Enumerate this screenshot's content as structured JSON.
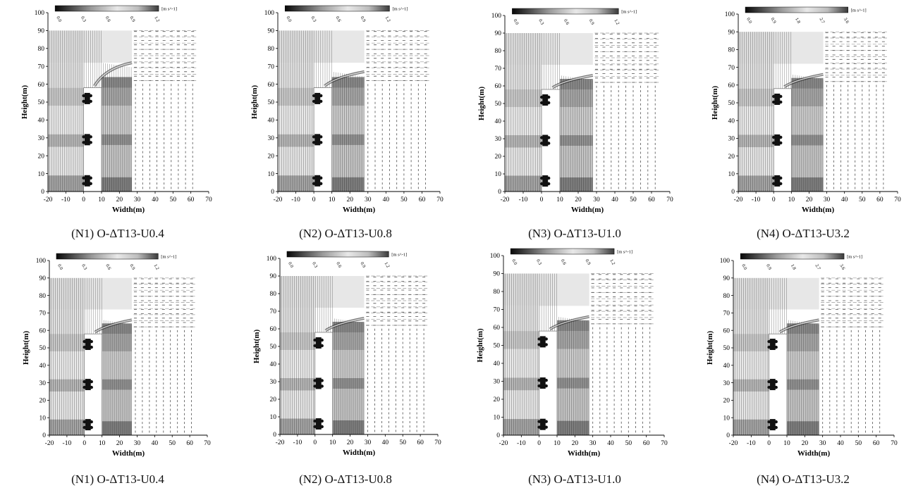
{
  "chart_data": [
    {
      "id": "r1c1",
      "type": "vector-field",
      "caption": "(N1) O-ΔT13-U0.4",
      "xlabel": "Width(m)",
      "ylabel": "Height(m)",
      "xlim": [
        -20,
        70
      ],
      "ylim": [
        0,
        100
      ],
      "xticks": [
        -20,
        -10,
        0,
        10,
        20,
        30,
        40,
        50,
        60,
        70
      ],
      "yticks": [
        0,
        10,
        20,
        30,
        40,
        50,
        60,
        70,
        80,
        90,
        100
      ],
      "colorbar": {
        "unit": "[m s^-1]",
        "ticks": [
          "0.0",
          "0.3",
          "0.6",
          "0.9",
          "1.2"
        ],
        "range": [
          0,
          1.2
        ]
      },
      "buildings": [
        {
          "x0": 0,
          "x1": 10,
          "y0": 0,
          "y1": 58
        }
      ],
      "trees": [
        {
          "x": 2,
          "y": 6
        },
        {
          "x": 2,
          "y": 29
        },
        {
          "x": 2,
          "y": 52
        }
      ],
      "plume": {
        "top": 72,
        "edge": 27
      }
    },
    {
      "id": "r1c2",
      "type": "vector-field",
      "caption": "(N2) O-ΔT13-U0.8",
      "xlabel": "Width(m)",
      "ylabel": "Height(m)",
      "xlim": [
        -20,
        70
      ],
      "ylim": [
        0,
        100
      ],
      "xticks": [
        -20,
        -10,
        0,
        10,
        20,
        30,
        40,
        50,
        60,
        70
      ],
      "yticks": [
        0,
        10,
        20,
        30,
        40,
        50,
        60,
        70,
        80,
        90,
        100
      ],
      "colorbar": {
        "unit": "[m s^-1]",
        "ticks": [
          "0.0",
          "0.3",
          "0.6",
          "0.9",
          "1.2"
        ],
        "range": [
          0,
          1.2
        ]
      },
      "buildings": [
        {
          "x0": 0,
          "x1": 10,
          "y0": 0,
          "y1": 58
        }
      ],
      "trees": [
        {
          "x": 2,
          "y": 6
        },
        {
          "x": 2,
          "y": 29
        },
        {
          "x": 2,
          "y": 52
        }
      ],
      "plume": {
        "top": 67,
        "edge": 28
      }
    },
    {
      "id": "r1c3",
      "type": "vector-field",
      "caption": "(N3) O-ΔT13-U1.0",
      "xlabel": "Width(m)",
      "ylabel": "Height(m)",
      "xlim": [
        -20,
        70
      ],
      "ylim": [
        0,
        100
      ],
      "xticks": [
        -20,
        -10,
        0,
        10,
        20,
        30,
        40,
        50,
        60,
        70
      ],
      "yticks": [
        0,
        10,
        20,
        30,
        40,
        50,
        60,
        70,
        80,
        90,
        100
      ],
      "colorbar": {
        "unit": "[m s^-1]",
        "ticks": [
          "0.0",
          "0.3",
          "0.6",
          "0.9",
          "1.2"
        ],
        "range": [
          0,
          1.2
        ]
      },
      "buildings": [
        {
          "x0": 0,
          "x1": 10,
          "y0": 0,
          "y1": 58
        }
      ],
      "trees": [
        {
          "x": 2,
          "y": 6
        },
        {
          "x": 2,
          "y": 29
        },
        {
          "x": 2,
          "y": 52
        }
      ],
      "plume": {
        "top": 66,
        "edge": 28
      }
    },
    {
      "id": "r1c4",
      "type": "vector-field",
      "caption": "(N4) O-ΔT13-U3.2",
      "xlabel": "Width(m)",
      "ylabel": "Height(m)",
      "xlim": [
        -20,
        70
      ],
      "ylim": [
        0,
        100
      ],
      "xticks": [
        -20,
        -10,
        0,
        10,
        20,
        30,
        40,
        50,
        60,
        70
      ],
      "yticks": [
        0,
        10,
        20,
        30,
        40,
        50,
        60,
        70,
        80,
        90,
        100
      ],
      "colorbar": {
        "unit": "[m s^-1]",
        "ticks": [
          "0.0",
          "0.9",
          "1.8",
          "2.7",
          "3.6"
        ],
        "range": [
          0,
          3.6
        ]
      },
      "buildings": [
        {
          "x0": 0,
          "x1": 10,
          "y0": 0,
          "y1": 58
        }
      ],
      "trees": [
        {
          "x": 2,
          "y": 6
        },
        {
          "x": 2,
          "y": 29
        },
        {
          "x": 2,
          "y": 52
        }
      ],
      "plume": {
        "top": 66,
        "edge": 28
      }
    },
    {
      "id": "r2c1",
      "type": "vector-field",
      "caption": "(N1) O-ΔT13-U0.4",
      "xlabel": "Width(m)",
      "ylabel": "Height(m)",
      "xlim": [
        -20,
        70
      ],
      "ylim": [
        0,
        100
      ],
      "xticks": [
        -20,
        -10,
        0,
        10,
        20,
        30,
        40,
        50,
        60,
        70
      ],
      "yticks": [
        0,
        10,
        20,
        30,
        40,
        50,
        60,
        70,
        80,
        90,
        100
      ],
      "colorbar": {
        "unit": "[m s^-1]",
        "ticks": [
          "0.0",
          "0.3",
          "0.6",
          "0.9",
          "1.2"
        ],
        "range": [
          0,
          1.2
        ]
      },
      "buildings": [
        {
          "x0": 0,
          "x1": 10,
          "y0": 0,
          "y1": 58
        }
      ],
      "trees": [
        {
          "x": 2,
          "y": 6
        },
        {
          "x": 2,
          "y": 29
        },
        {
          "x": 2,
          "y": 52
        }
      ],
      "plume": {
        "top": 66,
        "edge": 27
      }
    },
    {
      "id": "r2c2",
      "type": "vector-field",
      "caption": "(N2) O-ΔT13-U0.8",
      "xlabel": "Width(m)",
      "ylabel": "Height(m)",
      "xlim": [
        -20,
        70
      ],
      "ylim": [
        0,
        100
      ],
      "xticks": [
        -20,
        -10,
        0,
        10,
        20,
        30,
        40,
        50,
        60,
        70
      ],
      "yticks": [
        0,
        10,
        20,
        30,
        40,
        50,
        60,
        70,
        80,
        90,
        100
      ],
      "colorbar": {
        "unit": "[m s^-1]",
        "ticks": [
          "0.0",
          "0.3",
          "0.6",
          "0.9",
          "1.2"
        ],
        "range": [
          0,
          1.2
        ]
      },
      "buildings": [
        {
          "x0": 0,
          "x1": 10,
          "y0": 0,
          "y1": 58
        }
      ],
      "trees": [
        {
          "x": 2,
          "y": 6
        },
        {
          "x": 2,
          "y": 29
        },
        {
          "x": 2,
          "y": 52
        }
      ],
      "plume": {
        "top": 66,
        "edge": 28
      }
    },
    {
      "id": "r2c3",
      "type": "vector-field",
      "caption": "(N3) O-ΔT13-U1.0",
      "xlabel": "Width(m)",
      "ylabel": "Height(m)",
      "xlim": [
        -20,
        70
      ],
      "ylim": [
        0,
        100
      ],
      "xticks": [
        -20,
        -10,
        0,
        10,
        20,
        30,
        40,
        50,
        60,
        70
      ],
      "yticks": [
        0,
        10,
        20,
        30,
        40,
        50,
        60,
        70,
        80,
        90,
        100
      ],
      "colorbar": {
        "unit": "[m s^-1]",
        "ticks": [
          "0.0",
          "0.3",
          "0.6",
          "0.9",
          "1.2"
        ],
        "range": [
          0,
          1.2
        ]
      },
      "buildings": [
        {
          "x0": 0,
          "x1": 10,
          "y0": 0,
          "y1": 58
        }
      ],
      "trees": [
        {
          "x": 2,
          "y": 6
        },
        {
          "x": 2,
          "y": 29
        },
        {
          "x": 2,
          "y": 52
        }
      ],
      "plume": {
        "top": 66,
        "edge": 28
      }
    },
    {
      "id": "r2c4",
      "type": "vector-field",
      "caption": "(N4) O-ΔT13-U3.2",
      "xlabel": "Width(m)",
      "ylabel": "Height(m)",
      "xlim": [
        -20,
        70
      ],
      "ylim": [
        0,
        100
      ],
      "xticks": [
        -20,
        -10,
        0,
        10,
        20,
        30,
        40,
        50,
        60,
        70
      ],
      "yticks": [
        0,
        10,
        20,
        30,
        40,
        50,
        60,
        70,
        80,
        90,
        100
      ],
      "colorbar": {
        "unit": "[m s^-1]",
        "ticks": [
          "0.0",
          "0.9",
          "1.8",
          "2.7",
          "3.6"
        ],
        "range": [
          0,
          3.6
        ]
      },
      "buildings": [
        {
          "x0": 0,
          "x1": 10,
          "y0": 0,
          "y1": 58
        }
      ],
      "trees": [
        {
          "x": 2,
          "y": 6
        },
        {
          "x": 2,
          "y": 29
        },
        {
          "x": 2,
          "y": 52
        }
      ],
      "plume": {
        "top": 66,
        "edge": 28
      }
    }
  ]
}
